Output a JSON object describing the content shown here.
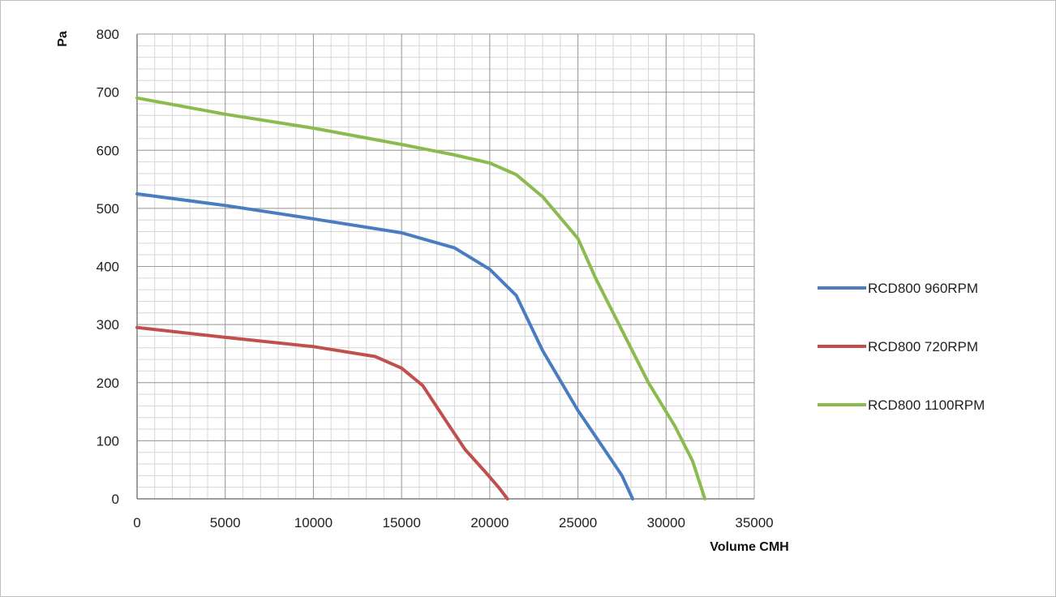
{
  "chart_data": {
    "type": "line",
    "title": "",
    "xlabel": "Volume CMH",
    "ylabel": "Pa",
    "xlim": [
      0,
      35000
    ],
    "ylim": [
      0,
      800
    ],
    "x_ticks": [
      0,
      5000,
      10000,
      15000,
      20000,
      25000,
      30000,
      35000
    ],
    "y_ticks": [
      0,
      100,
      200,
      300,
      400,
      500,
      600,
      700,
      800
    ],
    "x_tick_labels": [
      "0",
      "5000",
      "10000",
      "15000",
      "20000",
      "25000",
      "30000",
      "35000"
    ],
    "y_tick_labels": [
      "0",
      "100",
      "200",
      "300",
      "400",
      "500",
      "600",
      "700",
      "800"
    ],
    "x_minor_step": 1000,
    "y_minor_step": 20,
    "grid": true,
    "legend_position": "right",
    "series": [
      {
        "name": "RCD800 960RPM",
        "color": "#4a7dbf",
        "points": [
          [
            0,
            525
          ],
          [
            5000,
            505
          ],
          [
            10000,
            482
          ],
          [
            15000,
            458
          ],
          [
            18000,
            432
          ],
          [
            20000,
            395
          ],
          [
            21500,
            350
          ],
          [
            23000,
            255
          ],
          [
            25000,
            152
          ],
          [
            26500,
            85
          ],
          [
            27500,
            40
          ],
          [
            28100,
            0
          ]
        ]
      },
      {
        "name": "RCD800 720RPM",
        "color": "#c0504d",
        "points": [
          [
            0,
            295
          ],
          [
            5000,
            278
          ],
          [
            10000,
            262
          ],
          [
            13500,
            245
          ],
          [
            15000,
            225
          ],
          [
            16200,
            195
          ],
          [
            17500,
            135
          ],
          [
            18600,
            85
          ],
          [
            19700,
            48
          ],
          [
            20500,
            20
          ],
          [
            21000,
            0
          ]
        ]
      },
      {
        "name": "RCD800 1100RPM",
        "color": "#8bbb4f",
        "points": [
          [
            0,
            690
          ],
          [
            5000,
            662
          ],
          [
            10000,
            638
          ],
          [
            15000,
            610
          ],
          [
            18000,
            592
          ],
          [
            20000,
            578
          ],
          [
            21500,
            558
          ],
          [
            23000,
            520
          ],
          [
            25000,
            448
          ],
          [
            26000,
            380
          ],
          [
            27500,
            290
          ],
          [
            29000,
            200
          ],
          [
            30500,
            125
          ],
          [
            31500,
            65
          ],
          [
            32200,
            0
          ]
        ]
      }
    ]
  }
}
